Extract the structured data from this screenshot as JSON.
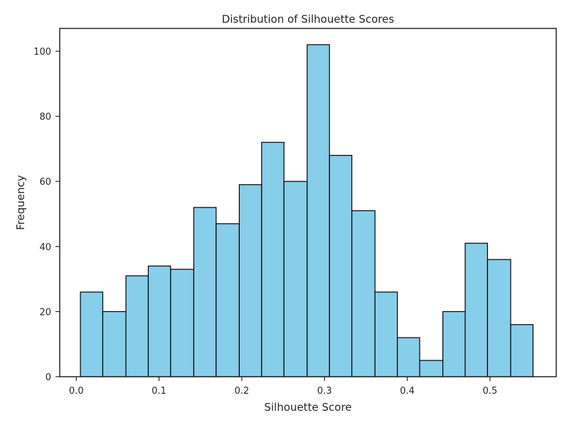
{
  "chart_data": {
    "type": "bar",
    "title": "Distribution of Silhouette Scores",
    "xlabel": "Silhouette Score",
    "ylabel": "Frequency",
    "xlim": [
      -0.02,
      0.58
    ],
    "ylim": [
      0,
      107
    ],
    "xticks": [
      0.0,
      0.1,
      0.2,
      0.3,
      0.4,
      0.5
    ],
    "xtick_labels": [
      "0.0",
      "0.1",
      "0.2",
      "0.3",
      "0.4",
      "0.5"
    ],
    "yticks": [
      0,
      20,
      40,
      60,
      80,
      100
    ],
    "ytick_labels": [
      "0",
      "20",
      "40",
      "60",
      "80",
      "100"
    ],
    "grid": false,
    "bins": [
      {
        "start": 0.005,
        "end": 0.032,
        "count": 26
      },
      {
        "start": 0.032,
        "end": 0.06,
        "count": 20
      },
      {
        "start": 0.06,
        "end": 0.087,
        "count": 31
      },
      {
        "start": 0.087,
        "end": 0.114,
        "count": 34
      },
      {
        "start": 0.114,
        "end": 0.142,
        "count": 33
      },
      {
        "start": 0.142,
        "end": 0.169,
        "count": 52
      },
      {
        "start": 0.169,
        "end": 0.197,
        "count": 47
      },
      {
        "start": 0.197,
        "end": 0.224,
        "count": 59
      },
      {
        "start": 0.224,
        "end": 0.251,
        "count": 72
      },
      {
        "start": 0.251,
        "end": 0.279,
        "count": 60
      },
      {
        "start": 0.279,
        "end": 0.306,
        "count": 102
      },
      {
        "start": 0.306,
        "end": 0.333,
        "count": 68
      },
      {
        "start": 0.333,
        "end": 0.361,
        "count": 51
      },
      {
        "start": 0.361,
        "end": 0.388,
        "count": 26
      },
      {
        "start": 0.388,
        "end": 0.415,
        "count": 12
      },
      {
        "start": 0.415,
        "end": 0.443,
        "count": 5
      },
      {
        "start": 0.443,
        "end": 0.47,
        "count": 20
      },
      {
        "start": 0.47,
        "end": 0.497,
        "count": 41
      },
      {
        "start": 0.497,
        "end": 0.525,
        "count": 36
      },
      {
        "start": 0.525,
        "end": 0.552,
        "count": 16
      }
    ],
    "colors": {
      "bar_fill": "#87ceeb",
      "bar_edge": "#000000",
      "axis": "#262626"
    }
  }
}
